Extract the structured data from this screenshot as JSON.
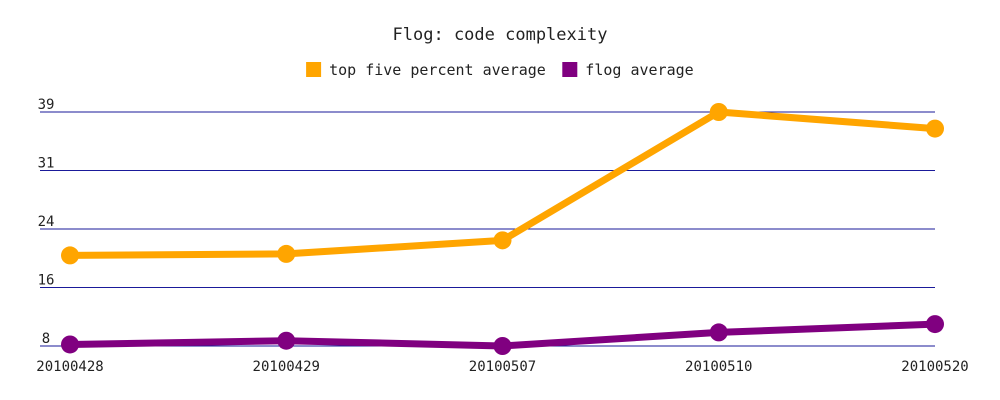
{
  "chart_data": {
    "type": "line",
    "title": "Flog: code complexity",
    "xlabel": "",
    "ylabel": "",
    "categories": [
      "20100428",
      "20100429",
      "20100507",
      "20100510",
      "20100520"
    ],
    "ylim": [
      8,
      39
    ],
    "yticks": [
      "8",
      "16",
      "24",
      "31",
      "39"
    ],
    "grid": true,
    "legend_position": "top-center",
    "series": [
      {
        "name": "top five percent average",
        "color": "#FFA500",
        "values": [
          20.0,
          20.2,
          22.0,
          39.0,
          36.8
        ]
      },
      {
        "name": "flog average",
        "color": "#800080",
        "values": [
          8.2,
          8.7,
          8.0,
          9.8,
          10.9
        ]
      }
    ]
  }
}
